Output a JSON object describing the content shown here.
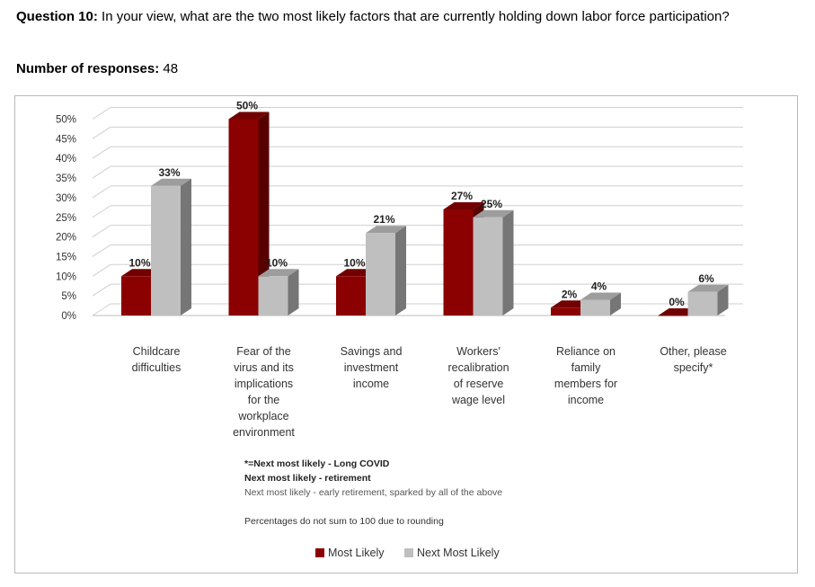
{
  "header": {
    "question_label": "Question 10:",
    "question_text": " In your view, what are the two most likely factors that are currently holding down labor force participation?",
    "responses_label": "Number of responses:",
    "responses_value": " 48"
  },
  "colors": {
    "most_likely": "#8b0000",
    "next_most_likely": "#bfbfbf"
  },
  "chart_data": {
    "type": "bar",
    "title": "",
    "xlabel": "",
    "ylabel": "",
    "ylim": [
      0,
      50
    ],
    "yticks": [
      "0%",
      "5%",
      "10%",
      "15%",
      "20%",
      "25%",
      "30%",
      "35%",
      "40%",
      "45%",
      "50%"
    ],
    "grid": true,
    "legend_position": "bottom",
    "categories": [
      [
        "Childcare",
        "difficulties"
      ],
      [
        "Fear of the",
        "virus and its",
        "implications",
        "for the",
        "workplace",
        "environment"
      ],
      [
        "Savings and",
        "investment",
        "income"
      ],
      [
        "Workers'",
        "recalibration",
        "of reserve",
        "wage level"
      ],
      [
        "Reliance on",
        "family",
        "members for",
        "income"
      ],
      [
        "Other, please",
        "specify*"
      ]
    ],
    "series": [
      {
        "name": "Most Likely",
        "values": [
          10,
          50,
          10,
          27,
          2,
          0
        ],
        "labels": [
          "10%",
          "50%",
          "10%",
          "27%",
          "2%",
          "0%"
        ]
      },
      {
        "name": "Next Most Likely",
        "values": [
          33,
          10,
          21,
          25,
          4,
          6
        ],
        "labels": [
          "33%",
          "10%",
          "21%",
          "25%",
          "4%",
          "6%"
        ]
      }
    ],
    "notes": [
      "*=Next most likely - Long COVID",
      "Next most likely - retirement",
      "Next most likely - early retirement, sparked by all of the above",
      "Percentages do not sum to 100 due to rounding"
    ]
  }
}
